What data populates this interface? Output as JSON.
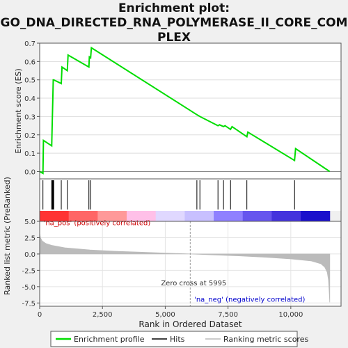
{
  "title_lines": [
    "Enrichment plot:",
    "GO_DNA_DIRECTED_RNA_POLYMERASE_II_CORE_COM",
    "PLEX"
  ],
  "chart_data": [
    {
      "type": "line",
      "ylabel": "Enrichment score (ES)",
      "xlim": [
        0,
        12000
      ],
      "ylim": [
        -0.04,
        0.7
      ],
      "yticks": [
        0.0,
        0.1,
        0.2,
        0.3,
        0.4,
        0.5,
        0.6,
        0.7
      ],
      "ytick_labels": [
        "0.0",
        "0.1",
        "0.2",
        "0.3",
        "0.4",
        "0.5",
        "0.6",
        "0.7"
      ],
      "grid": true,
      "series": [
        {
          "name": "Enrichment profile",
          "color": "#00dd00",
          "x": [
            0,
            130,
            150,
            480,
            500,
            520,
            540,
            560,
            860,
            890,
            1100,
            1130,
            1960,
            1980,
            2030,
            2060,
            6260,
            6380,
            7100,
            7160,
            7320,
            7380,
            7600,
            7660,
            8250,
            8290,
            10150,
            10190,
            11550
          ],
          "y": [
            0.0,
            -0.01,
            0.17,
            0.14,
            0.26,
            0.38,
            0.5,
            0.5,
            0.48,
            0.57,
            0.55,
            0.635,
            0.57,
            0.625,
            0.62,
            0.675,
            0.31,
            0.3,
            0.25,
            0.255,
            0.245,
            0.25,
            0.23,
            0.245,
            0.19,
            0.215,
            0.06,
            0.125,
            0.0
          ]
        }
      ]
    },
    {
      "type": "heatmap",
      "series": [
        {
          "name": "Hits",
          "color": "#000000",
          "x": [
            130,
            480,
            500,
            520,
            540,
            560,
            860,
            1100,
            1960,
            2030,
            6260,
            6380,
            7100,
            7320,
            7600,
            8250,
            10150
          ]
        }
      ],
      "colorbar": [
        "#ff3333",
        "#ff6666",
        "#ff9999",
        "#ffc0e8",
        "#e0d8ff",
        "#c8c0ff",
        "#8f80ff",
        "#6655ee",
        "#4433dd",
        "#1a10cc"
      ]
    },
    {
      "type": "area",
      "ylabel": "Ranked list metric (PreRanked)",
      "xlabel": "Rank in Ordered Dataset",
      "xlim": [
        0,
        12000
      ],
      "ylim": [
        -8.0,
        5.0
      ],
      "xticks": [
        0,
        2500,
        5000,
        7500,
        10000
      ],
      "xtick_labels": [
        "0",
        "2,500",
        "5,000",
        "7,500",
        "10,000"
      ],
      "yticks": [
        5.0,
        2.5,
        0.0,
        -2.5,
        -5.0,
        -7.5
      ],
      "ytick_labels": [
        "5.0",
        "2.5",
        "0.0",
        "-2.5",
        "-5.0",
        "-7.5"
      ],
      "grid": true,
      "series": [
        {
          "name": "Ranking metric scores",
          "color": "#bbbbbb",
          "x": [
            0,
            30,
            100,
            250,
            500,
            1000,
            2000,
            3000,
            4000,
            5000,
            5995,
            7000,
            8000,
            9000,
            10000,
            10800,
            11200,
            11350,
            11450,
            11500,
            11530,
            11550
          ],
          "y": [
            3.2,
            2.5,
            2.0,
            1.6,
            1.3,
            0.95,
            0.62,
            0.42,
            0.28,
            0.14,
            0.0,
            -0.15,
            -0.3,
            -0.5,
            -0.75,
            -1.05,
            -1.5,
            -2.0,
            -2.8,
            -4.0,
            -5.8,
            -7.4
          ]
        }
      ],
      "annotations": [
        {
          "text": "'na_pos' (positively correlated)",
          "color": "#cc0000",
          "x": 100,
          "y": 4.4
        },
        {
          "text": "Zero cross at 5995",
          "color": "#333333",
          "x": 5995,
          "y": -4.8
        },
        {
          "text": "'na_neg' (negatively correlated)",
          "color": "#0000cc",
          "x": 6100,
          "y": -7.3
        }
      ],
      "zero_cross": 5995
    }
  ],
  "legend": {
    "items": [
      {
        "label": "Enrichment profile",
        "color": "#00dd00"
      },
      {
        "label": "Hits",
        "color": "#000000"
      },
      {
        "label": "Ranking metric scores",
        "color": "#bbbbbb"
      }
    ]
  }
}
